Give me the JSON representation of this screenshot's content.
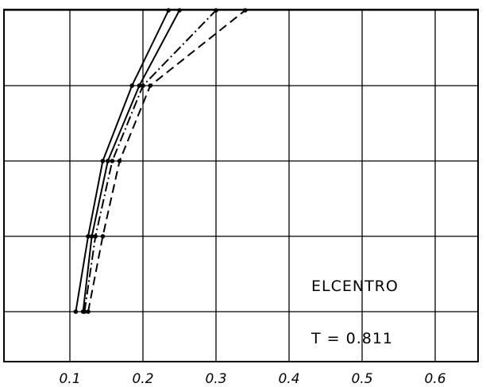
{
  "chart_data": {
    "type": "line",
    "title": "",
    "xlabel": "",
    "ylabel": "",
    "xlim": [
      0.0,
      0.7
    ],
    "ylim": [
      0,
      5
    ],
    "grid": true,
    "x_ticks": [
      0.1,
      0.2,
      0.3,
      0.4,
      0.5,
      0.6
    ],
    "x_tick_labels": [
      "0.1",
      "0.2",
      "0.3",
      "0.4",
      "0.5",
      "0.6"
    ],
    "levels": [
      1,
      2,
      3,
      4,
      5
    ],
    "annotations": [
      "ELCENTRO",
      "T = 0.811"
    ],
    "series": [
      {
        "style": "solid",
        "x": [
          0.108,
          0.125,
          0.145,
          0.185,
          0.235
        ]
      },
      {
        "style": "solid",
        "x": [
          0.118,
          0.13,
          0.152,
          0.195,
          0.25
        ]
      },
      {
        "style": "dashdot",
        "x": [
          0.12,
          0.135,
          0.158,
          0.2,
          0.3
        ]
      },
      {
        "style": "dashed",
        "x": [
          0.125,
          0.145,
          0.168,
          0.21,
          0.34
        ]
      }
    ]
  }
}
